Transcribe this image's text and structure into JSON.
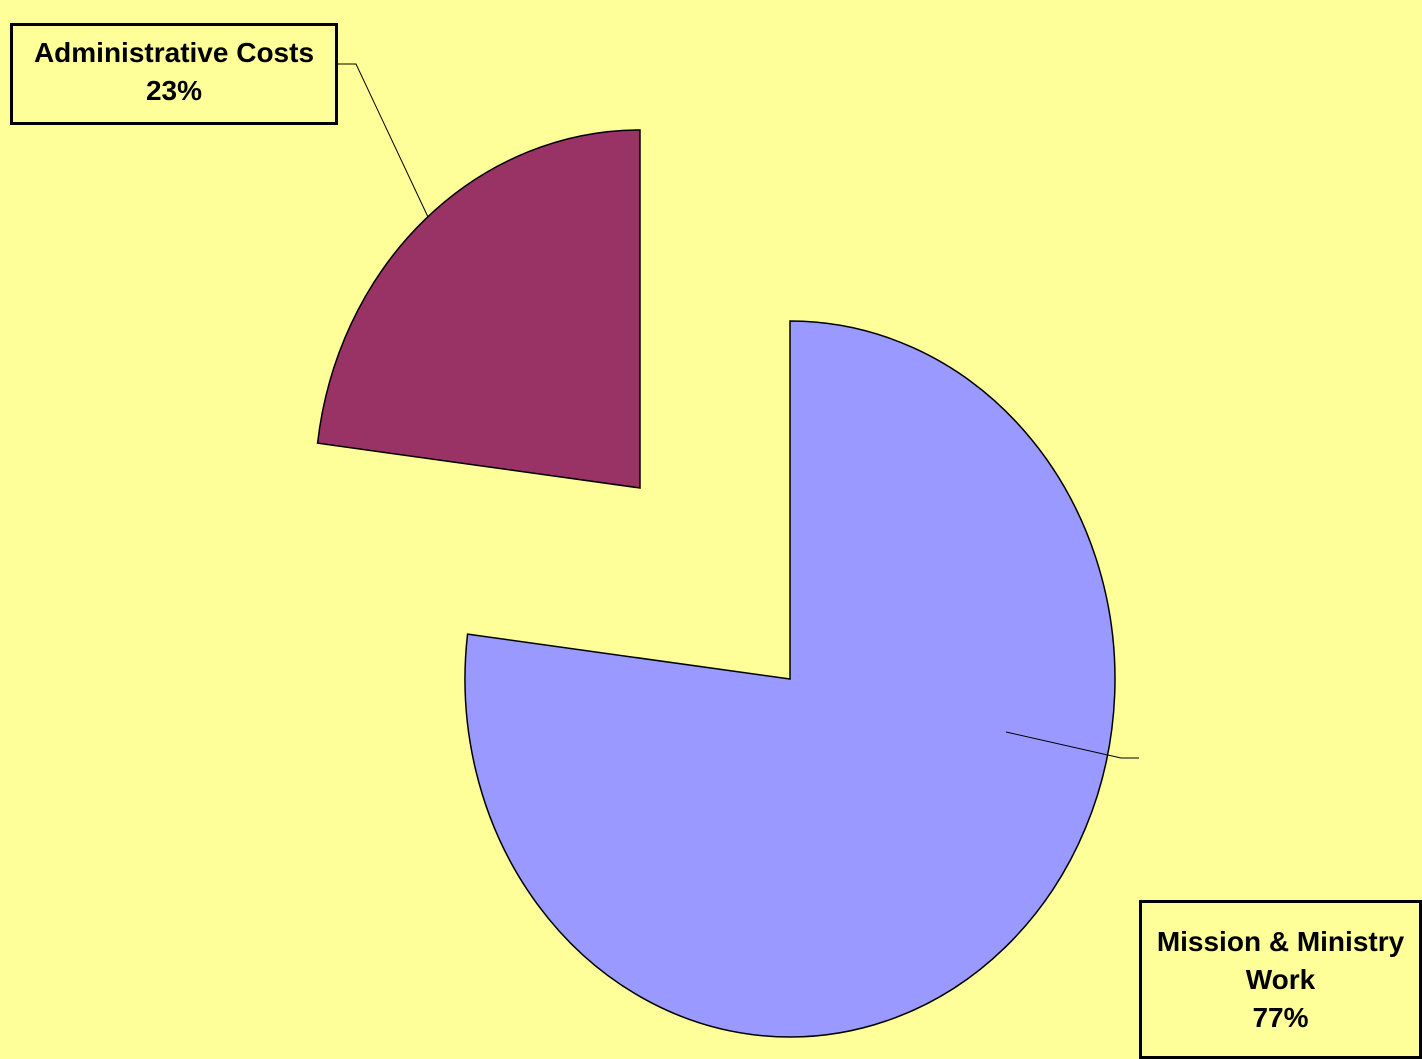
{
  "chart_data": {
    "type": "pie",
    "title": "",
    "exploded": true,
    "slices": [
      {
        "label_lines": [
          "Administrative Costs"
        ],
        "percent_label": "23%",
        "value": 23,
        "color": "#993366"
      },
      {
        "label_lines": [
          "Mission & Ministry",
          "Work"
        ],
        "percent_label": "77%",
        "value": 77,
        "color": "#9999ff"
      }
    ],
    "background_color": "#ffff99",
    "legend": "none"
  }
}
